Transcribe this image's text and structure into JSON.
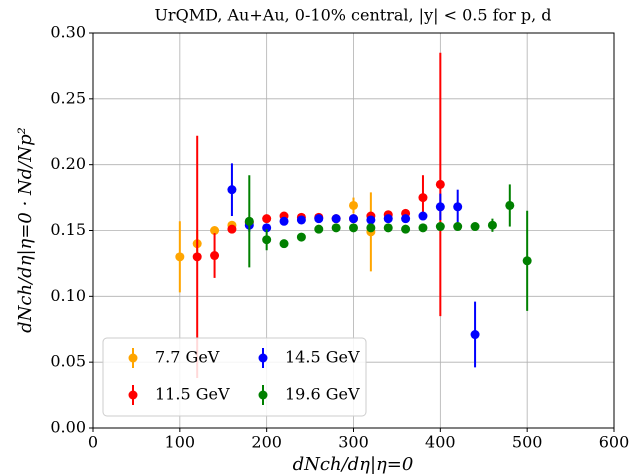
{
  "chart_data": {
    "type": "errorbar",
    "title": "UrQMD, Au+Au, 0-10% central, |y| < 0.5 for p, d",
    "x_label": "dNch/dη|η=0",
    "y_label": "dNch/dη|η=0 · Nd/Np²",
    "xlim": [
      0,
      600
    ],
    "xticks": [
      0,
      100,
      200,
      300,
      400,
      500,
      600
    ],
    "ylim": [
      0,
      0.3
    ],
    "yticks": [
      {
        "value": 0,
        "label": "0.00"
      },
      {
        "value": 0.05,
        "label": "0.05"
      },
      {
        "value": 0.1,
        "label": "0.10"
      },
      {
        "value": 0.15,
        "label": "0.15"
      },
      {
        "value": 0.2,
        "label": "0.20"
      },
      {
        "value": 0.25,
        "label": "0.25"
      },
      {
        "value": 0.3,
        "label": "0.30"
      }
    ],
    "grid": true,
    "legend_loc": "lower left",
    "legend_columns": 2,
    "series": [
      {
        "name": "7.7 GeV",
        "color": "#ffa500",
        "x": [
          100,
          120,
          140,
          160,
          300,
          320
        ],
        "values": [
          0.13,
          0.14,
          0.15,
          0.154,
          0.169,
          0.149
        ],
        "errors": [
          0.027,
          0.01,
          0.003,
          0.003,
          0.006,
          0.03
        ]
      },
      {
        "name": "11.5 GeV",
        "color": "#ff0000",
        "x": [
          120,
          140,
          160,
          180,
          200,
          220,
          240,
          260,
          280,
          300,
          320,
          340,
          360,
          380,
          400
        ],
        "values": [
          0.13,
          0.131,
          0.151,
          0.156,
          0.159,
          0.161,
          0.16,
          0.16,
          0.159,
          0.159,
          0.161,
          0.162,
          0.163,
          0.175,
          0.185
        ],
        "errors": [
          0.092,
          0.017,
          0.003,
          0.003,
          0.003,
          0.003,
          0.003,
          0.003,
          0.003,
          0.003,
          0.003,
          0.003,
          0.003,
          0.017,
          0.1
        ]
      },
      {
        "name": "14.5 GeV",
        "color": "#0000ff",
        "x": [
          160,
          180,
          200,
          220,
          240,
          260,
          280,
          300,
          320,
          340,
          360,
          380,
          400,
          420,
          440
        ],
        "values": [
          0.181,
          0.154,
          0.152,
          0.157,
          0.158,
          0.159,
          0.159,
          0.159,
          0.158,
          0.159,
          0.159,
          0.161,
          0.168,
          0.168,
          0.071
        ],
        "errors": [
          0.02,
          0.005,
          0.003,
          0.003,
          0.003,
          0.003,
          0.003,
          0.003,
          0.003,
          0.003,
          0.003,
          0.003,
          0.01,
          0.013,
          0.025
        ]
      },
      {
        "name": "19.6 GeV",
        "color": "#008000",
        "x": [
          180,
          200,
          220,
          240,
          260,
          280,
          300,
          320,
          340,
          360,
          380,
          400,
          420,
          440,
          460,
          480,
          500
        ],
        "values": [
          0.157,
          0.143,
          0.14,
          0.145,
          0.151,
          0.152,
          0.152,
          0.152,
          0.152,
          0.151,
          0.152,
          0.153,
          0.153,
          0.153,
          0.154,
          0.169,
          0.127
        ],
        "errors": [
          0.035,
          0.008,
          0.003,
          0.003,
          0.003,
          0.003,
          0.003,
          0.003,
          0.003,
          0.003,
          0.003,
          0.003,
          0.003,
          0.003,
          0.005,
          0.016,
          0.038
        ]
      }
    ]
  }
}
